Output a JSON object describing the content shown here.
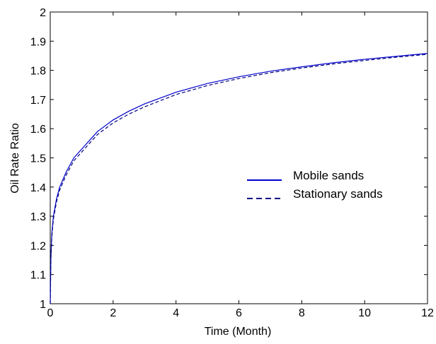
{
  "chart_data": {
    "type": "line",
    "title": "",
    "xlabel": "Time (Month)",
    "ylabel": "Oil Rate Ratio",
    "xlim": [
      0,
      12
    ],
    "ylim": [
      1,
      2
    ],
    "xticks": [
      0,
      2,
      4,
      6,
      8,
      10,
      12
    ],
    "yticks": [
      1,
      1.1,
      1.2,
      1.3,
      1.4,
      1.5,
      1.6,
      1.7,
      1.8,
      1.9,
      2
    ],
    "grid": false,
    "legend_position": "center-right",
    "series": [
      {
        "name": "Mobile sands",
        "style": "solid",
        "color": "#0000cc",
        "x": [
          0,
          0.02,
          0.05,
          0.1,
          0.2,
          0.3,
          0.5,
          0.75,
          1,
          1.5,
          2,
          2.5,
          3,
          4,
          5,
          6,
          7,
          8,
          9,
          10,
          11,
          12
        ],
        "y": [
          1.0,
          1.16,
          1.24,
          1.3,
          1.36,
          1.4,
          1.45,
          1.5,
          1.53,
          1.59,
          1.63,
          1.66,
          1.685,
          1.725,
          1.755,
          1.778,
          1.797,
          1.812,
          1.826,
          1.838,
          1.848,
          1.858
        ]
      },
      {
        "name": "Stationary sands",
        "style": "dashed",
        "color": "#000080",
        "x": [
          0,
          0.02,
          0.05,
          0.1,
          0.2,
          0.3,
          0.5,
          0.75,
          1,
          1.5,
          2,
          2.5,
          3,
          4,
          5,
          6,
          7,
          8,
          9,
          10,
          11,
          12
        ],
        "y": [
          1.0,
          1.15,
          1.23,
          1.29,
          1.35,
          1.39,
          1.44,
          1.49,
          1.52,
          1.58,
          1.62,
          1.65,
          1.675,
          1.717,
          1.748,
          1.772,
          1.792,
          1.808,
          1.822,
          1.834,
          1.845,
          1.855
        ]
      }
    ]
  }
}
